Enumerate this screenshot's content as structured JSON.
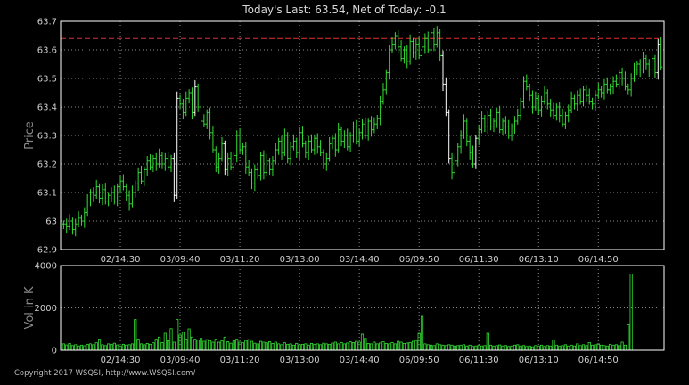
{
  "title": "Today's Last: 63.54,  Net of Today: -0.1",
  "copyright": "Copyright 2017 WSQSI, http://www.WSQSI.com/",
  "colors": {
    "up": "#33dd33",
    "down": "#33dd33",
    "flat": "#ffffff",
    "reference": "#e03030",
    "volume": "#33dd33",
    "grid": "#8a8a8a",
    "axis": "#ffffff"
  },
  "chart_data": [
    {
      "type": "ohlc",
      "ylabel": "Price",
      "ylim": [
        62.9,
        63.7
      ],
      "yticks": [
        62.9,
        63,
        63.1,
        63.2,
        63.3,
        63.4,
        63.5,
        63.6,
        63.7
      ],
      "ytick_labels": [
        "62.9",
        "63",
        "63.1",
        "63.2",
        "63.3",
        "63.4",
        "63.5",
        "63.6",
        "63.7"
      ],
      "xtick_labels": [
        "02/14:30",
        "03/09:40",
        "03/11:20",
        "03/13:00",
        "03/14:40",
        "06/09:50",
        "06/11:30",
        "06/13:10",
        "06/14:50"
      ],
      "xtick_bar_index": [
        19,
        39,
        59,
        79,
        99,
        119,
        139,
        159,
        179
      ],
      "reference_line": 63.64,
      "grid": true,
      "close": [
        62.99,
        62.98,
        63.0,
        62.97,
        62.99,
        63.01,
        63.0,
        63.03,
        63.07,
        63.1,
        63.09,
        63.12,
        63.08,
        63.11,
        63.07,
        63.09,
        63.1,
        63.07,
        63.12,
        63.14,
        63.12,
        63.09,
        63.06,
        63.1,
        63.13,
        63.17,
        63.14,
        63.18,
        63.21,
        63.19,
        63.22,
        63.2,
        63.23,
        63.2,
        63.22,
        63.19,
        63.22,
        63.09,
        63.43,
        63.41,
        63.38,
        63.43,
        63.45,
        63.38,
        63.47,
        63.4,
        63.35,
        63.34,
        63.38,
        63.31,
        63.25,
        63.19,
        63.22,
        63.27,
        63.18,
        63.22,
        63.19,
        63.23,
        63.3,
        63.25,
        63.26,
        63.19,
        63.17,
        63.13,
        63.18,
        63.16,
        63.23,
        63.17,
        63.21,
        63.18,
        63.21,
        63.25,
        63.28,
        63.24,
        63.3,
        63.22,
        63.26,
        63.28,
        63.24,
        63.31,
        63.27,
        63.24,
        63.28,
        63.25,
        63.29,
        63.26,
        63.24,
        63.2,
        63.22,
        63.27,
        63.29,
        63.25,
        63.32,
        63.28,
        63.3,
        63.26,
        63.3,
        63.33,
        63.28,
        63.31,
        63.34,
        63.3,
        63.35,
        63.32,
        63.34,
        63.36,
        63.42,
        63.46,
        63.52,
        63.6,
        63.62,
        63.65,
        63.61,
        63.57,
        63.6,
        63.56,
        63.63,
        63.59,
        63.62,
        63.58,
        63.61,
        63.64,
        63.6,
        63.66,
        63.62,
        63.66,
        63.58,
        63.48,
        63.38,
        63.22,
        63.17,
        63.21,
        63.26,
        63.3,
        63.35,
        63.28,
        63.24,
        63.2,
        63.29,
        63.32,
        63.36,
        63.33,
        63.37,
        63.33,
        63.35,
        63.38,
        63.32,
        63.35,
        63.33,
        63.3,
        63.33,
        63.35,
        63.37,
        63.42,
        63.49,
        63.47,
        63.44,
        63.4,
        63.43,
        63.39,
        63.42,
        63.45,
        63.41,
        63.39,
        63.37,
        63.4,
        63.37,
        63.34,
        63.37,
        63.39,
        63.43,
        63.41,
        63.44,
        63.42,
        63.46,
        63.44,
        63.42,
        63.41,
        63.44,
        63.46,
        63.45,
        63.48,
        63.46,
        63.47,
        63.49,
        63.48,
        63.52,
        63.5,
        63.47,
        63.46,
        63.5,
        63.53,
        63.55,
        63.53,
        63.57,
        63.55,
        63.53,
        63.57,
        63.52,
        63.62,
        63.54
      ]
    },
    {
      "type": "bar",
      "ylabel": "Vol in K",
      "ylim": [
        0,
        4000
      ],
      "yticks": [
        0,
        2000,
        4000
      ],
      "ytick_labels": [
        "0",
        "2000",
        "4000"
      ],
      "xtick_labels": [
        "02/14:30",
        "03/09:40",
        "03/11:20",
        "03/13:00",
        "03/14:40",
        "06/09:50",
        "06/11:30",
        "06/13:10",
        "06/14:50"
      ],
      "grid": true,
      "values": [
        300,
        250,
        320,
        220,
        260,
        200,
        240,
        210,
        280,
        300,
        260,
        350,
        520,
        260,
        220,
        300,
        280,
        330,
        250,
        200,
        280,
        240,
        260,
        300,
        1450,
        520,
        300,
        260,
        320,
        280,
        350,
        520,
        620,
        360,
        800,
        450,
        1020,
        380,
        1450,
        720,
        850,
        520,
        1010,
        620,
        520,
        480,
        560,
        420,
        500,
        450,
        380,
        520,
        380,
        450,
        620,
        400,
        330,
        460,
        520,
        380,
        350,
        460,
        500,
        420,
        330,
        300,
        420,
        380,
        350,
        400,
        320,
        380,
        300,
        260,
        350,
        280,
        300,
        240,
        320,
        260,
        280,
        300,
        240,
        320,
        280,
        300,
        260,
        330,
        300,
        280,
        340,
        380,
        300,
        360,
        300,
        340,
        400,
        360,
        420,
        380,
        760,
        560,
        320,
        300,
        380,
        300,
        340,
        400,
        320,
        300,
        360,
        300,
        420,
        380,
        320,
        340,
        360,
        420,
        460,
        800,
        1600,
        300,
        260,
        240,
        220,
        300,
        260,
        240,
        220,
        260,
        240,
        200,
        220,
        240,
        260,
        200,
        240,
        180,
        200,
        230,
        200,
        220,
        800,
        240,
        200,
        220,
        250,
        200,
        220,
        180,
        200,
        240,
        260,
        200,
        220,
        180,
        200,
        160,
        220,
        200,
        240,
        180,
        220,
        200,
        480,
        240,
        200,
        220,
        260,
        200,
        240,
        200,
        300,
        220,
        260,
        220,
        360,
        240,
        260,
        300,
        240,
        220,
        200,
        280,
        240,
        260,
        220,
        380,
        240,
        1200,
        3600
      ]
    }
  ]
}
